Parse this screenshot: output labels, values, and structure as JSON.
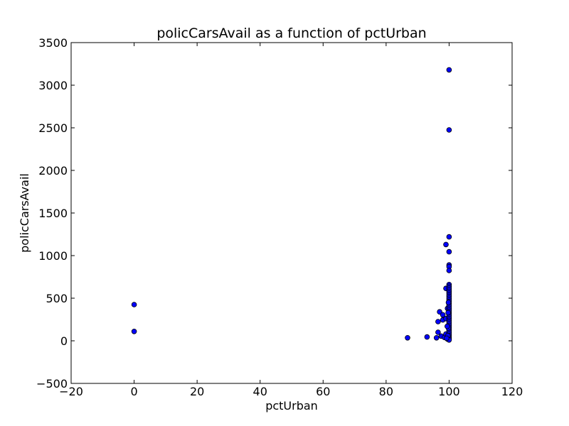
{
  "chart_data": {
    "type": "scatter",
    "title": "policCarsAvail as a function of pctUrban",
    "xlabel": "pctUrban",
    "ylabel": "policCarsAvail",
    "xlim": [
      -20,
      120
    ],
    "ylim": [
      -500,
      3500
    ],
    "xticks": [
      -20,
      0,
      20,
      40,
      60,
      80,
      100,
      120
    ],
    "yticks": [
      -500,
      0,
      500,
      1000,
      1500,
      2000,
      2500,
      3000,
      3500
    ],
    "xtick_labels": [
      "−20",
      "0",
      "20",
      "40",
      "60",
      "80",
      "100",
      "120"
    ],
    "ytick_labels": [
      "−500",
      "0",
      "500",
      "1000",
      "1500",
      "2000",
      "2500",
      "3000",
      "3500"
    ],
    "grid": false,
    "marker_color": "#0000ff",
    "marker_edge": "#000000",
    "points": [
      {
        "x": 0,
        "y": 425
      },
      {
        "x": 0,
        "y": 110
      },
      {
        "x": 86.8,
        "y": 35
      },
      {
        "x": 93,
        "y": 45
      },
      {
        "x": 96,
        "y": 35
      },
      {
        "x": 96.5,
        "y": 100
      },
      {
        "x": 96.5,
        "y": 225
      },
      {
        "x": 97,
        "y": 340
      },
      {
        "x": 97.5,
        "y": 55
      },
      {
        "x": 98,
        "y": 245
      },
      {
        "x": 98,
        "y": 305
      },
      {
        "x": 98.5,
        "y": 40
      },
      {
        "x": 99,
        "y": 80
      },
      {
        "x": 99,
        "y": 260
      },
      {
        "x": 99,
        "y": 1130
      },
      {
        "x": 99,
        "y": 615
      },
      {
        "x": 99.5,
        "y": 380
      },
      {
        "x": 99.5,
        "y": 20
      },
      {
        "x": 100,
        "y": 3180
      },
      {
        "x": 100,
        "y": 2475
      },
      {
        "x": 100,
        "y": 1220
      },
      {
        "x": 100,
        "y": 1045
      },
      {
        "x": 100,
        "y": 890
      },
      {
        "x": 100,
        "y": 870
      },
      {
        "x": 100,
        "y": 825
      },
      {
        "x": 100,
        "y": 660
      },
      {
        "x": 100,
        "y": 640
      },
      {
        "x": 100,
        "y": 620
      },
      {
        "x": 100,
        "y": 600
      },
      {
        "x": 100,
        "y": 580
      },
      {
        "x": 100,
        "y": 560
      },
      {
        "x": 100,
        "y": 540
      },
      {
        "x": 100,
        "y": 520
      },
      {
        "x": 100,
        "y": 500
      },
      {
        "x": 100,
        "y": 480
      },
      {
        "x": 100,
        "y": 460
      },
      {
        "x": 100,
        "y": 440
      },
      {
        "x": 100,
        "y": 420
      },
      {
        "x": 100,
        "y": 400
      },
      {
        "x": 100,
        "y": 380
      },
      {
        "x": 100,
        "y": 360
      },
      {
        "x": 100,
        "y": 340
      },
      {
        "x": 100,
        "y": 320
      },
      {
        "x": 100,
        "y": 300
      },
      {
        "x": 100,
        "y": 280
      },
      {
        "x": 100,
        "y": 260
      },
      {
        "x": 100,
        "y": 240
      },
      {
        "x": 100,
        "y": 220
      },
      {
        "x": 100,
        "y": 200
      },
      {
        "x": 100,
        "y": 180
      },
      {
        "x": 100,
        "y": 160
      },
      {
        "x": 100,
        "y": 140
      },
      {
        "x": 100,
        "y": 120
      },
      {
        "x": 100,
        "y": 100
      },
      {
        "x": 100,
        "y": 80
      },
      {
        "x": 100,
        "y": 60
      },
      {
        "x": 100,
        "y": 40
      },
      {
        "x": 100,
        "y": 25
      },
      {
        "x": 100,
        "y": 10
      },
      {
        "x": 99.8,
        "y": 450
      },
      {
        "x": 99.8,
        "y": 150
      },
      {
        "x": 99.6,
        "y": 60
      },
      {
        "x": 99.7,
        "y": 330
      },
      {
        "x": 99.4,
        "y": 170
      },
      {
        "x": 99.2,
        "y": 30
      }
    ]
  }
}
